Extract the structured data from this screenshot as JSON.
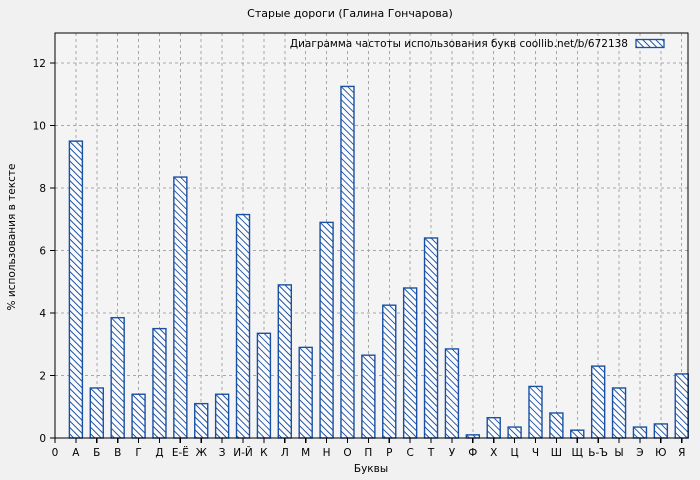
{
  "chart_data": {
    "type": "bar",
    "title": "Старые дороги (Галина Гончарова)",
    "legend": {
      "label": "Диаграмма частоты использования букв coollib.net/b/672138",
      "position": "top-right",
      "swatch": "blue-diagonal-hatch"
    },
    "xlabel": "Буквы",
    "ylabel": "% использования в тексте",
    "origin_tick_label": "0",
    "categories": [
      "А",
      "Б",
      "В",
      "Г",
      "Д",
      "Е-Ё",
      "Ж",
      "З",
      "И-Й",
      "К",
      "Л",
      "М",
      "Н",
      "О",
      "П",
      "Р",
      "С",
      "Т",
      "У",
      "Ф",
      "Х",
      "Ц",
      "Ч",
      "Ш",
      "Щ",
      "Ь-Ъ",
      "Ы",
      "Э",
      "Ю",
      "Я"
    ],
    "values": [
      9.5,
      1.6,
      3.85,
      1.4,
      3.5,
      8.35,
      1.1,
      1.4,
      7.15,
      3.35,
      4.9,
      2.9,
      6.9,
      11.25,
      2.65,
      4.25,
      4.8,
      6.4,
      2.85,
      0.1,
      0.65,
      0.35,
      1.65,
      0.8,
      0.25,
      2.3,
      1.6,
      0.35,
      0.45,
      2.05
    ],
    "yticks": [
      0,
      2,
      4,
      6,
      8,
      10,
      12
    ],
    "ylim": [
      0,
      12.96
    ],
    "grid": true,
    "bar_style": "hatched",
    "colors": {
      "bar": "#1a50a4",
      "bar_fill": "#fcfcfc",
      "grid": "#a8a8a8",
      "axis": "#000000",
      "text": "#000000",
      "background": "#f1f1f1",
      "plot_background": "#f4f4f4"
    }
  }
}
